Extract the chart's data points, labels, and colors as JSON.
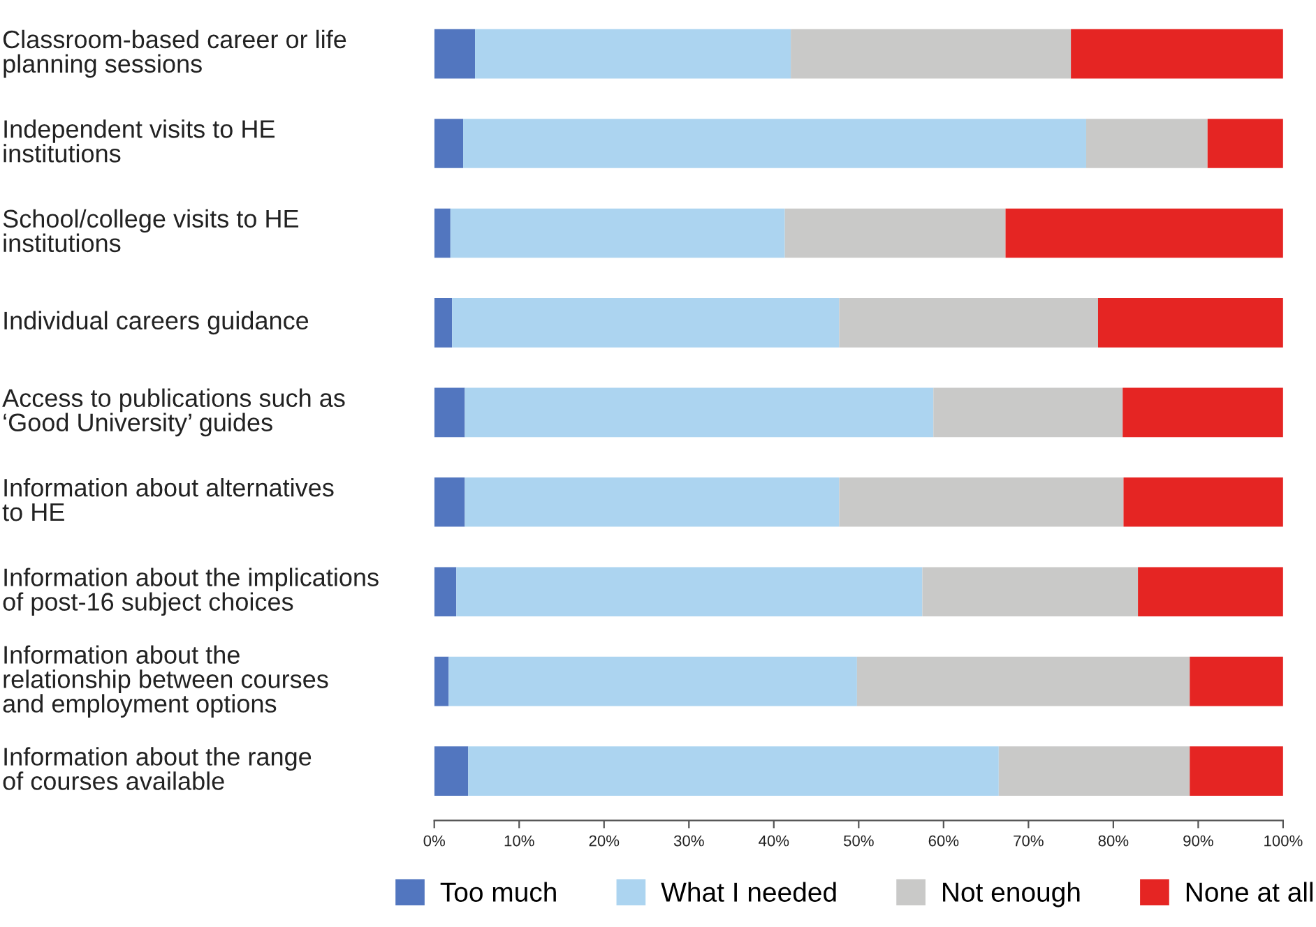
{
  "chart_data": {
    "type": "bar",
    "orientation": "horizontal",
    "stacked": true,
    "categories": [
      "Classroom-based career or life\nplanning sessions",
      "Independent visits to HE\ninstitutions",
      "School/college visits to HE\ninstitutions",
      "Individual careers guidance",
      "Access to publications such as\n‘Good University’ guides",
      "Information about alternatives\nto HE",
      "Information about the implications\nof post-16 subject choices",
      "Information about the\nrelationship between courses\nand employment options",
      "Information about the range\nof courses available"
    ],
    "series": [
      {
        "name": "Too much",
        "color": "#5276bf",
        "values": [
          4.8,
          3.4,
          1.9,
          2.1,
          3.6,
          3.6,
          2.6,
          1.7,
          4.0
        ]
      },
      {
        "name": "What I needed",
        "color": "#acd4f0",
        "values": [
          37.2,
          73.4,
          39.4,
          45.6,
          55.2,
          44.1,
          54.9,
          48.1,
          62.5
        ]
      },
      {
        "name": "Not enough",
        "color": "#c9c9c8",
        "values": [
          33.0,
          14.3,
          26.0,
          30.5,
          22.3,
          33.5,
          25.4,
          39.2,
          22.5
        ]
      },
      {
        "name": "None at all",
        "color": "#e52523",
        "values": [
          25.0,
          8.9,
          32.7,
          21.8,
          18.9,
          18.8,
          17.1,
          11.0,
          11.0
        ]
      }
    ],
    "xlim": [
      0,
      100
    ],
    "xticks": [
      {
        "value": 0,
        "label": "0%"
      },
      {
        "value": 10,
        "label": "10%"
      },
      {
        "value": 20,
        "label": "20%"
      },
      {
        "value": 30,
        "label": "30%"
      },
      {
        "value": 40,
        "label": "40%"
      },
      {
        "value": 50,
        "label": "50%"
      },
      {
        "value": 60,
        "label": "60%"
      },
      {
        "value": 70,
        "label": "70%"
      },
      {
        "value": 80,
        "label": "80%"
      },
      {
        "value": 90,
        "label": "90%"
      },
      {
        "value": 100,
        "label": "100%"
      }
    ],
    "grid": false,
    "legend": "bottom"
  }
}
